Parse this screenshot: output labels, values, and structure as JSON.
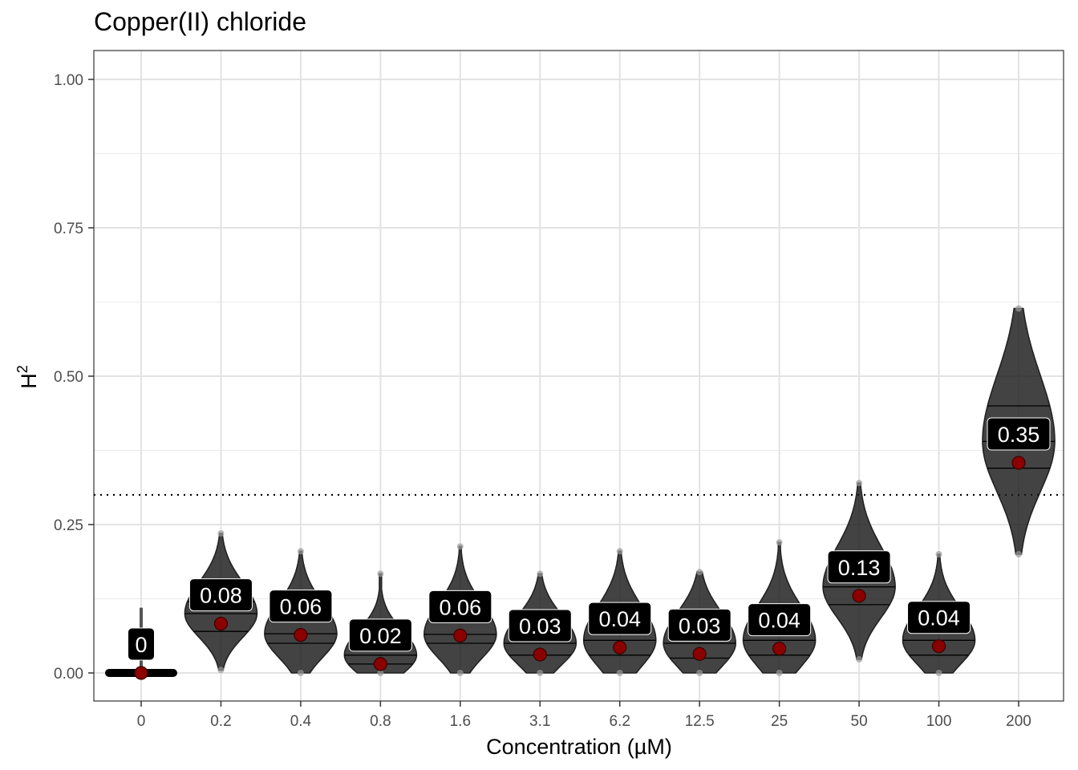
{
  "chart_data": {
    "type": "violin",
    "title": "Copper(II) chloride",
    "xlabel": "Concentration (µM)",
    "ylabel": "H",
    "ylabel_superscript": "2",
    "categories": [
      "0",
      "0.2",
      "0.4",
      "0.8",
      "1.6",
      "3.1",
      "6.2",
      "12.5",
      "25",
      "50",
      "100",
      "200"
    ],
    "yticks": [
      "0.00",
      "0.25",
      "0.50",
      "0.75",
      "1.00"
    ],
    "ylim": [
      -0.05,
      1.05
    ],
    "reference_line": 0.3,
    "grid": true,
    "colors": {
      "point": "#8b0000",
      "violin_fill": "#1a1a1a",
      "label_bg": "#000000",
      "label_text": "#ffffff"
    },
    "groups": [
      {
        "category": "0",
        "label": "0",
        "mean": 0.0,
        "min": 0.0,
        "max": 0.11,
        "q1": 0.0,
        "median": 0.0,
        "q3": 0.0
      },
      {
        "category": "0.2",
        "label": "0.08",
        "mean": 0.083,
        "min": 0.005,
        "max": 0.235,
        "q1": 0.07,
        "median": 0.1,
        "q3": 0.12
      },
      {
        "category": "0.4",
        "label": "0.06",
        "mean": 0.064,
        "min": 0.0,
        "max": 0.205,
        "q1": 0.05,
        "median": 0.066,
        "q3": 0.1
      },
      {
        "category": "0.8",
        "label": "0.02",
        "mean": 0.015,
        "min": 0.0,
        "max": 0.167,
        "q1": 0.015,
        "median": 0.03,
        "q3": 0.055
      },
      {
        "category": "1.6",
        "label": "0.06",
        "mean": 0.063,
        "min": 0.0,
        "max": 0.213,
        "q1": 0.05,
        "median": 0.065,
        "q3": 0.1
      },
      {
        "category": "3.1",
        "label": "0.03",
        "mean": 0.031,
        "min": 0.0,
        "max": 0.167,
        "q1": 0.03,
        "median": 0.05,
        "q3": 0.075
      },
      {
        "category": "6.2",
        "label": "0.04",
        "mean": 0.043,
        "min": 0.0,
        "max": 0.205,
        "q1": 0.03,
        "median": 0.055,
        "q3": 0.085
      },
      {
        "category": "12.5",
        "label": "0.03",
        "mean": 0.032,
        "min": 0.0,
        "max": 0.17,
        "q1": 0.025,
        "median": 0.05,
        "q3": 0.075
      },
      {
        "category": "25",
        "label": "0.04",
        "mean": 0.041,
        "min": 0.0,
        "max": 0.22,
        "q1": 0.03,
        "median": 0.055,
        "q3": 0.085
      },
      {
        "category": "50",
        "label": "0.13",
        "mean": 0.13,
        "min": 0.023,
        "max": 0.32,
        "q1": 0.115,
        "median": 0.145,
        "q3": 0.18
      },
      {
        "category": "100",
        "label": "0.04",
        "mean": 0.045,
        "min": 0.0,
        "max": 0.2,
        "q1": 0.03,
        "median": 0.055,
        "q3": 0.08
      },
      {
        "category": "200",
        "label": "0.35",
        "mean": 0.354,
        "min": 0.2,
        "max": 0.614,
        "q1": 0.345,
        "median": 0.39,
        "q3": 0.45
      }
    ]
  }
}
